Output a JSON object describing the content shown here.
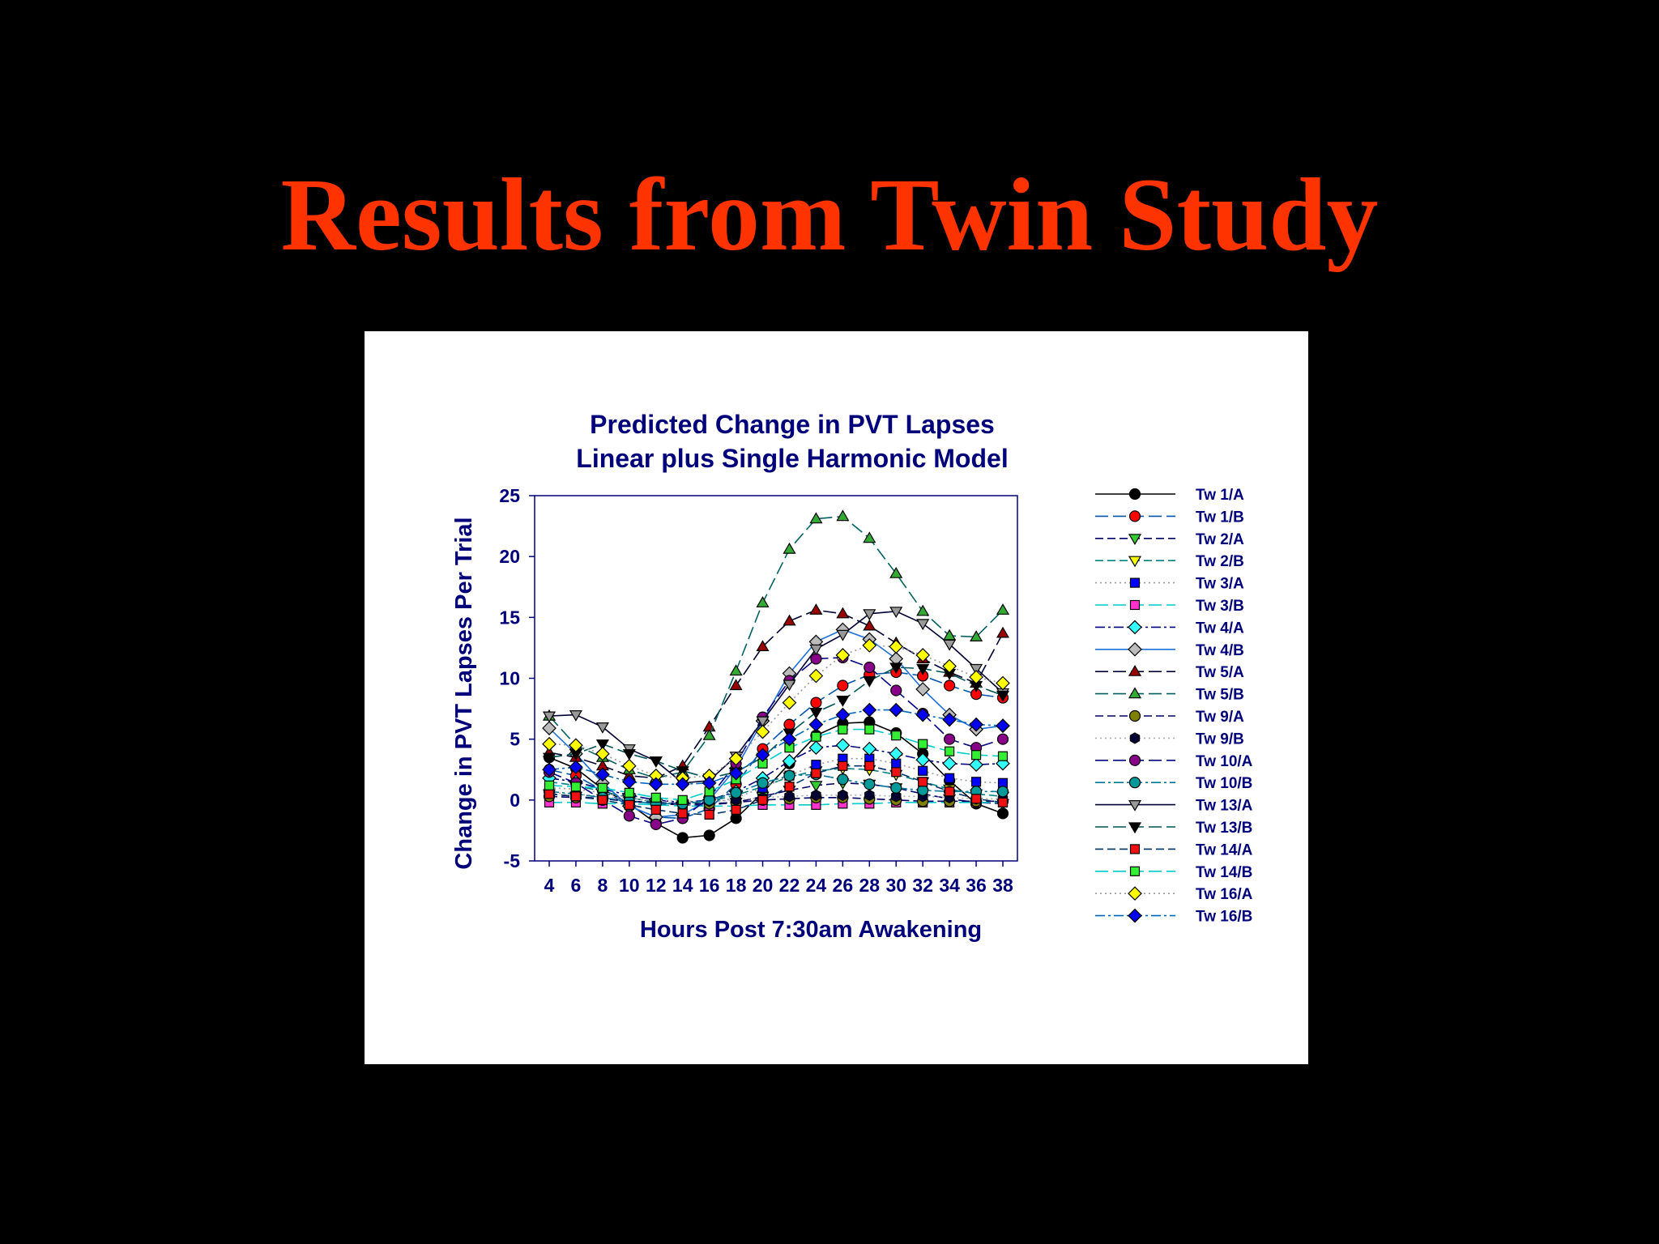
{
  "slide": {
    "title": "Results from Twin Study"
  },
  "chart_data": {
    "type": "line",
    "title": "Predicted Change in PVT Lapses",
    "subtitle": "Linear plus Single Harmonic Model",
    "xlabel": "Hours Post 7:30am Awakening",
    "ylabel": "Change in PVT Lapses Per Trial",
    "x": [
      4,
      6,
      8,
      10,
      12,
      14,
      16,
      18,
      20,
      22,
      24,
      26,
      28,
      30,
      32,
      34,
      36,
      38
    ],
    "x_ticks": [
      "4",
      "6",
      "8",
      "10",
      "12",
      "14",
      "16",
      "18",
      "20",
      "22",
      "24",
      "26",
      "28",
      "30",
      "32",
      "34",
      "36",
      "38"
    ],
    "ylim": [
      -5,
      25
    ],
    "y_ticks": [
      "-5",
      "0",
      "5",
      "10",
      "15",
      "20",
      "25"
    ],
    "grid": false,
    "legend_position": "right",
    "series": [
      {
        "name": "Tw 1/A",
        "color": "#000000",
        "fill": "#000000",
        "marker": "circle",
        "dash": "solid",
        "values": [
          3.5,
          2.6,
          0.9,
          -0.3,
          -1.9,
          -3.1,
          -2.9,
          -1.5,
          0.6,
          3.0,
          5.3,
          6.3,
          6.4,
          5.5,
          3.8,
          1.6,
          -0.3,
          -1.1
        ]
      },
      {
        "name": "Tw 1/B",
        "color": "#0055aa",
        "fill": "#ff0000",
        "marker": "circle",
        "dash": "longdash",
        "values": [
          2.5,
          2.0,
          0.8,
          -0.5,
          -1.4,
          -1.5,
          -0.7,
          1.3,
          4.2,
          6.2,
          8.0,
          9.4,
          10.3,
          10.5,
          10.2,
          9.4,
          8.7,
          8.4
        ]
      },
      {
        "name": "Tw 2/A",
        "color": "#000066",
        "fill": "#33cc33",
        "marker": "tri-down",
        "dash": "dash",
        "values": [
          0.5,
          0.3,
          0.1,
          -0.1,
          -0.3,
          -0.4,
          -0.4,
          -0.2,
          0.3,
          0.8,
          1.2,
          1.4,
          1.3,
          1.0,
          0.5,
          0.1,
          -0.2,
          -0.3
        ]
      },
      {
        "name": "Tw 2/B",
        "color": "#008080",
        "fill": "#ffff00",
        "marker": "tri-down",
        "dash": "dash",
        "values": [
          1.5,
          1.2,
          0.7,
          0.2,
          -0.2,
          -0.3,
          -0.1,
          0.4,
          1.1,
          1.9,
          2.4,
          2.6,
          2.5,
          2.1,
          1.5,
          0.9,
          0.5,
          0.3
        ]
      },
      {
        "name": "Tw 3/A",
        "color": "#999999",
        "fill": "#0000ff",
        "marker": "square",
        "dash": "dot",
        "values": [
          1.0,
          0.9,
          0.6,
          0.2,
          -0.2,
          -0.4,
          -0.3,
          0.2,
          1.0,
          2.0,
          2.9,
          3.4,
          3.4,
          3.0,
          2.4,
          1.8,
          1.5,
          1.4
        ]
      },
      {
        "name": "Tw 3/B",
        "color": "#00cccc",
        "fill": "#ff33cc",
        "marker": "square",
        "dash": "longdash",
        "values": [
          -0.2,
          -0.2,
          -0.3,
          -0.3,
          -0.4,
          -0.5,
          -0.5,
          -0.5,
          -0.4,
          -0.4,
          -0.4,
          -0.3,
          -0.3,
          -0.2,
          -0.2,
          -0.2,
          -0.2,
          -0.2
        ]
      },
      {
        "name": "Tw 4/A",
        "color": "#000080",
        "fill": "#33ffff",
        "marker": "diamond",
        "dash": "dashdot",
        "values": [
          1.8,
          1.5,
          0.9,
          0.4,
          0.0,
          -0.2,
          0.0,
          0.7,
          1.8,
          3.2,
          4.3,
          4.5,
          4.2,
          3.8,
          3.3,
          3.0,
          2.9,
          3.0
        ]
      },
      {
        "name": "Tw 4/B",
        "color": "#1e6fd9",
        "fill": "#bbbbbb",
        "marker": "diamond",
        "dash": "solid",
        "values": [
          5.9,
          3.8,
          1.4,
          -0.5,
          -1.4,
          -1.2,
          0.0,
          2.6,
          6.5,
          10.4,
          13.0,
          14.0,
          13.2,
          11.6,
          9.1,
          7.0,
          5.8,
          6.1
        ]
      },
      {
        "name": "Tw 5/A",
        "color": "#000033",
        "fill": "#990000",
        "marker": "tri-up",
        "dash": "longdash",
        "values": [
          3.9,
          3.5,
          2.8,
          2.0,
          1.8,
          2.8,
          6.0,
          9.4,
          12.6,
          14.7,
          15.6,
          15.3,
          14.3,
          12.9,
          11.6,
          10.5,
          9.6,
          13.7
        ]
      },
      {
        "name": "Tw 5/B",
        "color": "#006060",
        "fill": "#33aa33",
        "marker": "tri-up",
        "dash": "longdash",
        "values": [
          6.9,
          4.5,
          3.5,
          2.5,
          1.8,
          2.3,
          5.3,
          10.6,
          16.2,
          20.6,
          23.1,
          23.3,
          21.5,
          18.6,
          15.5,
          13.5,
          13.4,
          15.6
        ]
      },
      {
        "name": "Tw 9/A",
        "color": "#000066",
        "fill": "#808000",
        "marker": "circle",
        "dash": "dash",
        "values": [
          0.3,
          0.2,
          0.1,
          -0.1,
          -0.2,
          -0.3,
          -0.3,
          -0.2,
          0.0,
          0.1,
          0.2,
          0.2,
          0.1,
          0.0,
          -0.1,
          -0.1,
          -0.1,
          -0.1
        ]
      },
      {
        "name": "Tw 9/B",
        "color": "#aaaaaa",
        "fill": "#000033",
        "marker": "hexagon",
        "dash": "dot",
        "values": [
          0.6,
          0.5,
          0.3,
          0.1,
          0.0,
          -0.1,
          -0.1,
          0.0,
          0.2,
          0.3,
          0.4,
          0.4,
          0.4,
          0.3,
          0.3,
          0.2,
          0.1,
          0.1
        ]
      },
      {
        "name": "Tw 10/A",
        "color": "#000080",
        "fill": "#880088",
        "marker": "circle",
        "dash": "longdash",
        "values": [
          2.3,
          1.4,
          0.0,
          -1.3,
          -2.0,
          -1.5,
          0.2,
          3.0,
          6.8,
          9.8,
          11.6,
          11.7,
          10.9,
          9.0,
          7.1,
          5.0,
          4.3,
          5.0
        ]
      },
      {
        "name": "Tw 10/B",
        "color": "#007799",
        "fill": "#009999",
        "marker": "circle",
        "dash": "dashdot",
        "values": [
          0.7,
          0.5,
          0.2,
          -0.1,
          -0.3,
          -0.3,
          0.0,
          0.6,
          1.4,
          2.0,
          2.1,
          1.7,
          1.3,
          1.0,
          0.8,
          0.7,
          0.7,
          0.7
        ]
      },
      {
        "name": "Tw 13/A",
        "color": "#000033",
        "fill": "#999999",
        "marker": "tri-down",
        "dash": "solid",
        "values": [
          6.9,
          7.0,
          6.0,
          4.2,
          3.2,
          1.4,
          1.6,
          3.6,
          6.5,
          9.5,
          12.4,
          13.6,
          15.3,
          15.5,
          14.5,
          12.8,
          10.8,
          8.8
        ]
      },
      {
        "name": "Tw 13/B",
        "color": "#005555",
        "fill": "#000000",
        "marker": "tri-down",
        "dash": "longdash",
        "values": [
          3.5,
          3.8,
          4.6,
          3.8,
          3.2,
          2.4,
          1.8,
          2.3,
          3.5,
          5.5,
          7.2,
          8.2,
          9.8,
          10.9,
          10.8,
          10.4,
          9.4,
          8.6
        ]
      },
      {
        "name": "Tw 14/A",
        "color": "#003366",
        "fill": "#ee1111",
        "marker": "square",
        "dash": "dash",
        "values": [
          0.5,
          0.3,
          0.0,
          -0.4,
          -0.8,
          -1.1,
          -1.2,
          -0.8,
          0.0,
          1.1,
          2.2,
          2.8,
          2.8,
          2.3,
          1.5,
          0.7,
          0.1,
          -0.2
        ]
      },
      {
        "name": "Tw 14/B",
        "color": "#00cccc",
        "fill": "#33ee33",
        "marker": "square",
        "dash": "longdash",
        "values": [
          1.2,
          1.1,
          1.0,
          0.6,
          0.2,
          0.0,
          0.7,
          1.7,
          3.0,
          4.3,
          5.2,
          5.8,
          5.8,
          5.3,
          4.6,
          4.0,
          3.7,
          3.6
        ]
      },
      {
        "name": "Tw 16/A",
        "color": "#999999",
        "fill": "#ffff00",
        "marker": "diamond",
        "dash": "dot",
        "values": [
          4.6,
          4.5,
          3.8,
          2.8,
          2.0,
          1.8,
          2.0,
          3.4,
          5.6,
          8.0,
          10.2,
          11.9,
          12.7,
          12.6,
          11.9,
          11.0,
          10.1,
          9.6
        ]
      },
      {
        "name": "Tw 16/B",
        "color": "#0066bb",
        "fill": "#0000ee",
        "marker": "diamond",
        "dash": "dashdot",
        "values": [
          2.5,
          2.7,
          2.1,
          1.5,
          1.3,
          1.3,
          1.4,
          2.2,
          3.7,
          5.0,
          6.2,
          7.0,
          7.4,
          7.4,
          7.0,
          6.6,
          6.2,
          6.1
        ]
      }
    ]
  }
}
